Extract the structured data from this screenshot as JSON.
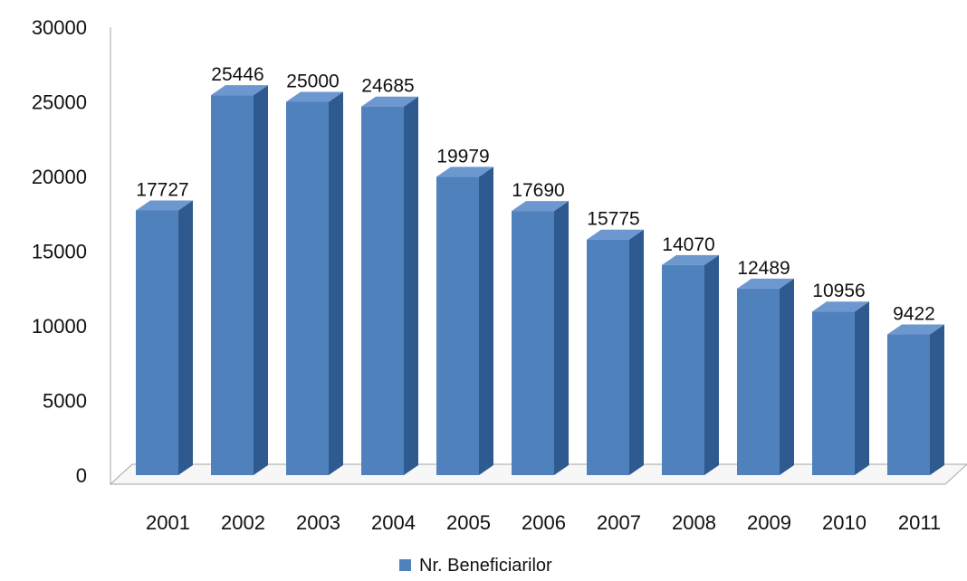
{
  "chart_data": {
    "type": "bar",
    "style": "3d-column",
    "categories": [
      "2001",
      "2002",
      "2003",
      "2004",
      "2005",
      "2006",
      "2007",
      "2008",
      "2009",
      "2010",
      "2011"
    ],
    "series": [
      {
        "name": "Nr. Beneficiarilor",
        "values": [
          17727,
          25446,
          25000,
          24685,
          19979,
          17690,
          15775,
          14070,
          12489,
          10956,
          9422
        ]
      }
    ],
    "data_labels": [
      "17727",
      "25446",
      "25000",
      "24685",
      "19979",
      "17690",
      "15775",
      "14070",
      "12489",
      "10956",
      "9422"
    ],
    "title": "",
    "xlabel": "",
    "ylabel": "",
    "ylim": [
      0,
      30000
    ],
    "yticks": [
      "0",
      "5000",
      "10000",
      "15000",
      "20000",
      "25000",
      "30000"
    ],
    "grid": false,
    "legend_position": "bottom"
  },
  "colors": {
    "bar_front": "#4f81bd",
    "bar_side": "#2f5a8f",
    "bar_top": "#6d98cf",
    "axis": "#a6a6a6",
    "floor_fill": "#f7f7f7"
  }
}
